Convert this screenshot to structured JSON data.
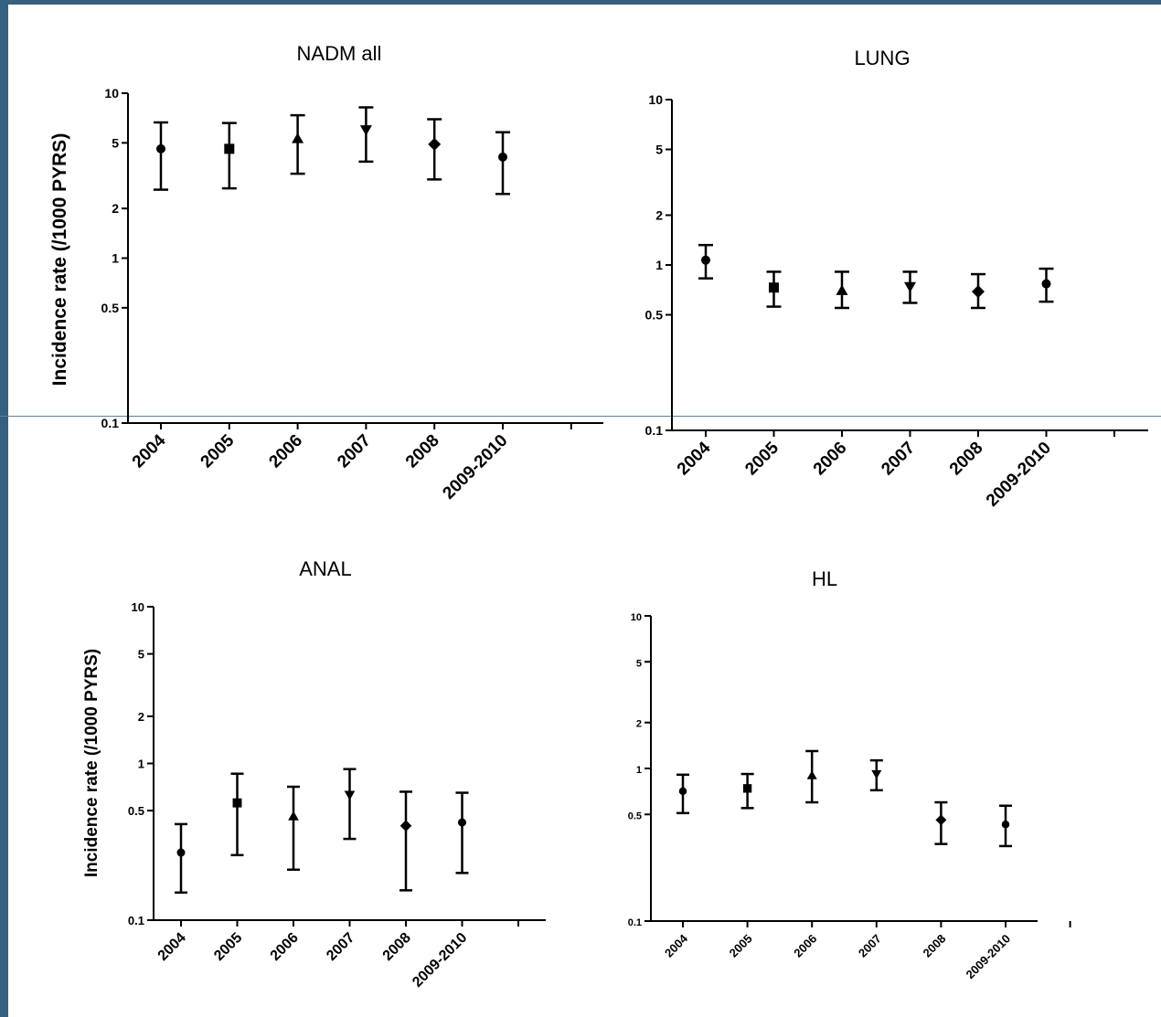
{
  "frame": {
    "border_color": "#35617f",
    "line_color": "#5a84a0"
  },
  "panels": [
    {
      "id": "nadm",
      "title": "NADM all",
      "ylabel": "Incidence rate (/1000 PYRS)"
    },
    {
      "id": "lung",
      "title": "LUNG",
      "ylabel": ""
    },
    {
      "id": "anal",
      "title": "ANAL",
      "ylabel": "Incidence rate (/1000 PYRS)"
    },
    {
      "id": "hl",
      "title": "HL",
      "ylabel": ""
    }
  ],
  "chart_data": [
    {
      "type": "scatter",
      "title": "NADM all",
      "xlabel": "",
      "ylabel": "Incidence rate (/1000 PYRS)",
      "yscale": "log",
      "ylim": [
        0.1,
        10
      ],
      "yticks": [
        "0.1",
        "0.5",
        "1",
        "2",
        "5",
        "10"
      ],
      "categories": [
        "2004",
        "2005",
        "2006",
        "2007",
        "2008",
        "2009-2010"
      ],
      "markers": [
        "circle",
        "square",
        "triangle-up",
        "triangle-down",
        "diamond",
        "circle"
      ],
      "values": [
        4.6,
        4.6,
        5.3,
        6.0,
        4.9,
        4.1
      ],
      "ci_low": [
        2.6,
        2.65,
        3.25,
        3.85,
        3.0,
        2.45
      ],
      "ci_high": [
        6.65,
        6.6,
        7.35,
        8.2,
        6.95,
        5.8
      ]
    },
    {
      "type": "scatter",
      "title": "LUNG",
      "xlabel": "",
      "ylabel": "",
      "yscale": "log",
      "ylim": [
        0.1,
        10
      ],
      "yticks": [
        "0.1",
        "0.5",
        "1",
        "2",
        "5",
        "10"
      ],
      "categories": [
        "2004",
        "2005",
        "2006",
        "2007",
        "2008",
        "2009-2010"
      ],
      "markers": [
        "circle",
        "square",
        "triangle-up",
        "triangle-down",
        "diamond",
        "circle"
      ],
      "values": [
        1.07,
        0.73,
        0.7,
        0.74,
        0.69,
        0.77
      ],
      "ci_low": [
        0.83,
        0.56,
        0.55,
        0.59,
        0.55,
        0.6
      ],
      "ci_high": [
        1.32,
        0.91,
        0.91,
        0.91,
        0.88,
        0.95
      ]
    },
    {
      "type": "scatter",
      "title": "ANAL",
      "xlabel": "",
      "ylabel": "Incidence rate (/1000 PYRS)",
      "yscale": "log",
      "ylim": [
        0.1,
        10
      ],
      "yticks": [
        "0.1",
        "0.5",
        "1",
        "2",
        "5",
        "10"
      ],
      "categories": [
        "2004",
        "2005",
        "2006",
        "2007",
        "2008",
        "2009-2010"
      ],
      "markers": [
        "circle",
        "square",
        "triangle-up",
        "triangle-down",
        "diamond",
        "circle"
      ],
      "values": [
        0.27,
        0.56,
        0.46,
        0.63,
        0.4,
        0.42
      ],
      "ci_low": [
        0.15,
        0.26,
        0.21,
        0.33,
        0.155,
        0.2
      ],
      "ci_high": [
        0.41,
        0.86,
        0.71,
        0.92,
        0.66,
        0.65
      ]
    },
    {
      "type": "scatter",
      "title": "HL",
      "xlabel": "",
      "ylabel": "",
      "yscale": "log",
      "ylim": [
        0.1,
        10
      ],
      "yticks": [
        "0.1",
        "0.5",
        "1",
        "2",
        "5",
        "10"
      ],
      "categories": [
        "2004",
        "2005",
        "2006",
        "2007",
        "2008",
        "2009-2010"
      ],
      "markers": [
        "circle",
        "square",
        "triangle-up",
        "triangle-down",
        "diamond",
        "circle"
      ],
      "values": [
        0.71,
        0.74,
        0.9,
        0.92,
        0.46,
        0.43
      ],
      "ci_low": [
        0.51,
        0.55,
        0.6,
        0.72,
        0.32,
        0.31
      ],
      "ci_high": [
        0.91,
        0.92,
        1.3,
        1.13,
        0.6,
        0.57
      ]
    }
  ]
}
